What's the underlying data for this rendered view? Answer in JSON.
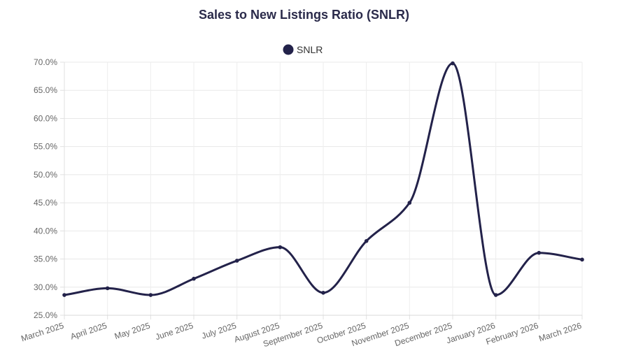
{
  "chart_data": {
    "type": "line",
    "title": "Sales to New Listings Ratio (SNLR)",
    "xlabel": "",
    "ylabel": "",
    "ylim": [
      25,
      70
    ],
    "y_ticks": [
      25,
      30,
      35,
      40,
      45,
      50,
      55,
      60,
      65,
      70
    ],
    "y_tick_format": "percent_1dp",
    "grid": true,
    "legend": {
      "position": "top-center",
      "marker": "circle"
    },
    "categories": [
      "March 2025",
      "April 2025",
      "May 2025",
      "June 2025",
      "July 2025",
      "August 2025",
      "September 2025",
      "October 2025",
      "November 2025",
      "December 2025",
      "January 2026",
      "February 2026",
      "March 2026"
    ],
    "series": [
      {
        "name": "SNLR",
        "color": "#23224a",
        "values": [
          28.6,
          29.8,
          28.6,
          31.5,
          34.7,
          37.1,
          29.0,
          38.2,
          45.0,
          69.8,
          28.6,
          36.1,
          34.9
        ]
      }
    ]
  }
}
